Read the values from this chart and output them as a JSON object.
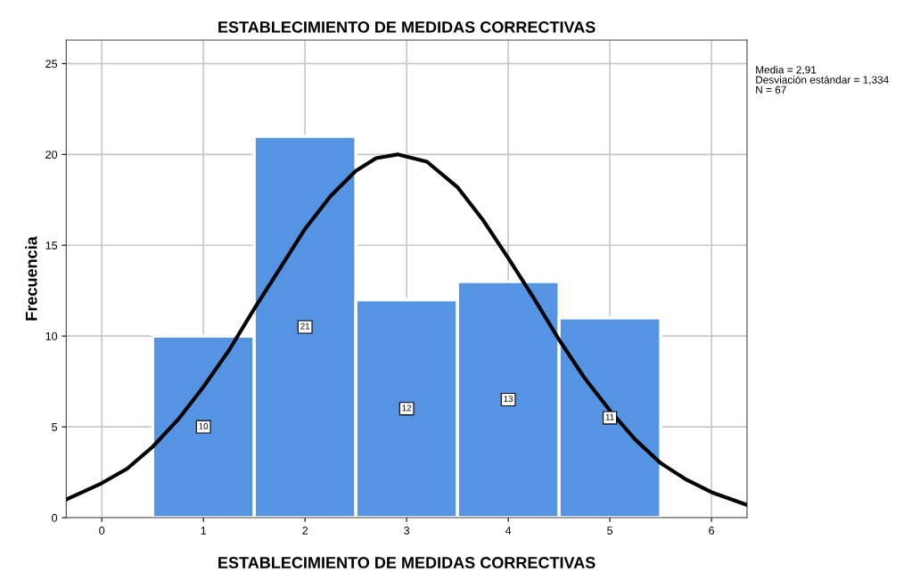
{
  "chart_data": {
    "type": "histogram",
    "title": "ESTABLECIMIENTO DE MEDIDAS CORRECTIVAS",
    "xlabel": "ESTABLECIMIENTO DE MEDIDAS CORRECTIVAS",
    "ylabel": "Frecuencia",
    "bins": [
      0.5,
      1.5,
      2.5,
      3.5,
      4.5,
      5.5
    ],
    "values": [
      10,
      21,
      12,
      13,
      11
    ],
    "color": "#5594e3",
    "value_labels": [
      "10",
      "21",
      "12",
      "13",
      "11"
    ],
    "series": [
      {
        "type": "line",
        "color": "#000000",
        "x": [
          -0.35,
          0,
          0.25,
          0.5,
          0.75,
          1,
          1.25,
          1.5,
          1.75,
          2,
          2.25,
          2.5,
          2.7,
          2.91,
          3.2,
          3.5,
          3.75,
          4,
          4.25,
          4.5,
          4.75,
          5,
          5.25,
          5.5,
          5.75,
          6,
          6.35
        ],
        "values": [
          1.0,
          1.9,
          2.7,
          3.9,
          5.4,
          7.2,
          9.2,
          11.5,
          13.7,
          15.9,
          17.7,
          19.1,
          19.8,
          20.0,
          19.6,
          18.2,
          16.4,
          14.3,
          12.1,
          9.8,
          7.7,
          5.9,
          4.3,
          3.0,
          2.1,
          1.4,
          0.7
        ]
      }
    ],
    "annotations": [
      "Media = 2,91",
      "Desviación estándar = 1,334",
      "N = 67"
    ],
    "xlim": [
      -0.35,
      6.35
    ],
    "xticks": [
      0,
      1,
      2,
      3,
      4,
      5,
      6
    ],
    "ylim": [
      0,
      26.3
    ],
    "yticks": [
      0,
      5,
      10,
      15,
      20,
      25
    ],
    "grid": true
  }
}
